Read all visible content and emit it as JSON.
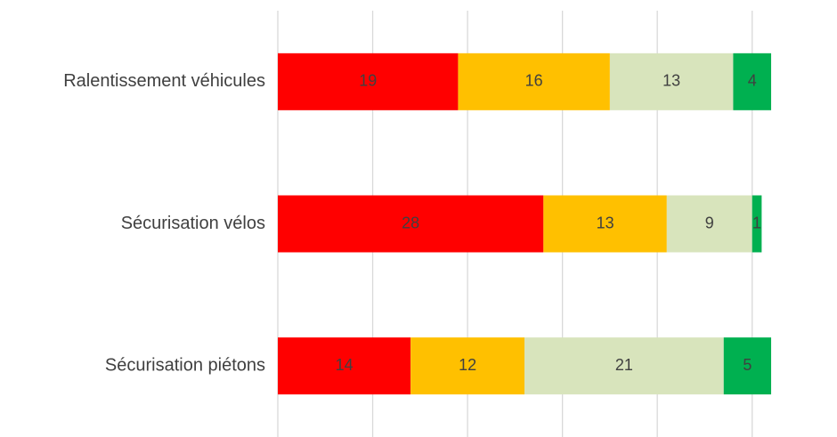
{
  "chart_data": {
    "type": "stacked_bar_horizontal",
    "categories": [
      "Ralentissement véhicules",
      "Sécurisation vélos",
      "Sécurisation piétons"
    ],
    "series": [
      {
        "color": "#ff0000",
        "values": [
          19,
          28,
          14
        ]
      },
      {
        "color": "#ffc000",
        "values": [
          16,
          13,
          12
        ]
      },
      {
        "color": "#d8e4bc",
        "values": [
          13,
          9,
          21
        ]
      },
      {
        "color": "#00b050",
        "values": [
          4,
          1,
          5
        ]
      }
    ],
    "xlim": [
      0,
      55
    ],
    "xticks": [
      0,
      10,
      20,
      30,
      40,
      50
    ],
    "grid": true
  }
}
